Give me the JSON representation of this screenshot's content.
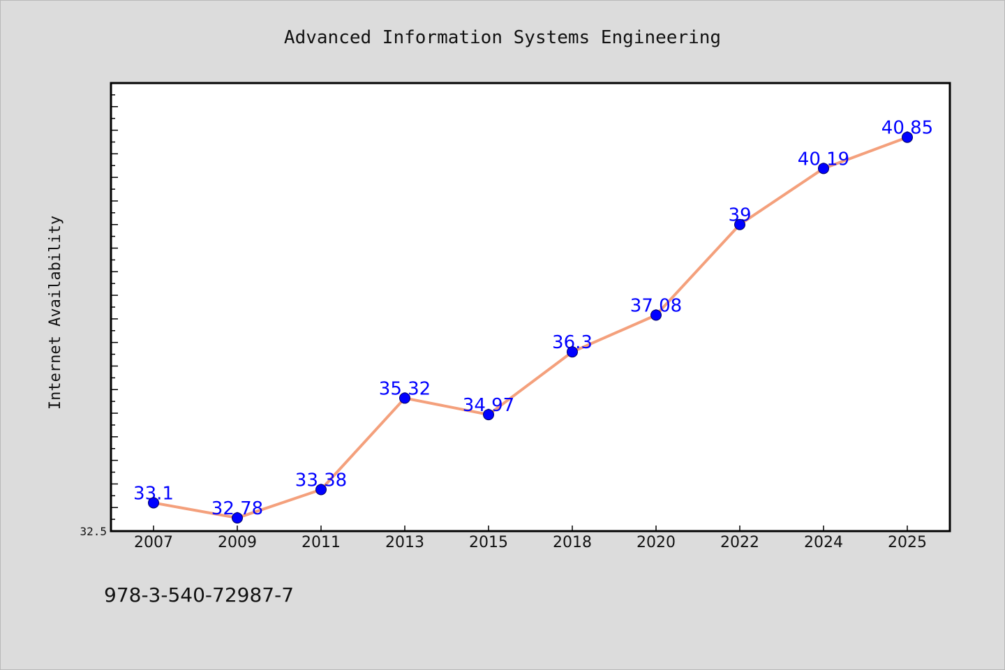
{
  "chart_data": {
    "type": "line",
    "title": "Advanced Information Systems Engineering",
    "xlabel": "",
    "ylabel": "Internet Availability",
    "categories": [
      "2007",
      "2009",
      "2011",
      "2013",
      "2015",
      "2018",
      "2020",
      "2022",
      "2024",
      "2025"
    ],
    "series": [
      {
        "values": [
          33.1,
          32.78,
          33.38,
          35.32,
          34.97,
          36.3,
          37.08,
          39,
          40.19,
          40.85
        ]
      }
    ],
    "data_labels": [
      "33.1",
      "32.78",
      "33.38",
      "35.32",
      "34.97",
      "36.3",
      "37.08",
      "39",
      "40.19",
      "40.85"
    ],
    "yticks": [
      "32.5"
    ],
    "ylim": [
      32.5,
      42.0
    ],
    "grid": false,
    "legend": "none",
    "colors": {
      "line": "#f4a07c",
      "marker": "#0000ff",
      "data_label": "#0000ff",
      "plot_background": "#ffffff",
      "page_background": "#dcdcdc"
    }
  },
  "footer": {
    "isbn": "978-3-540-72987-7"
  }
}
